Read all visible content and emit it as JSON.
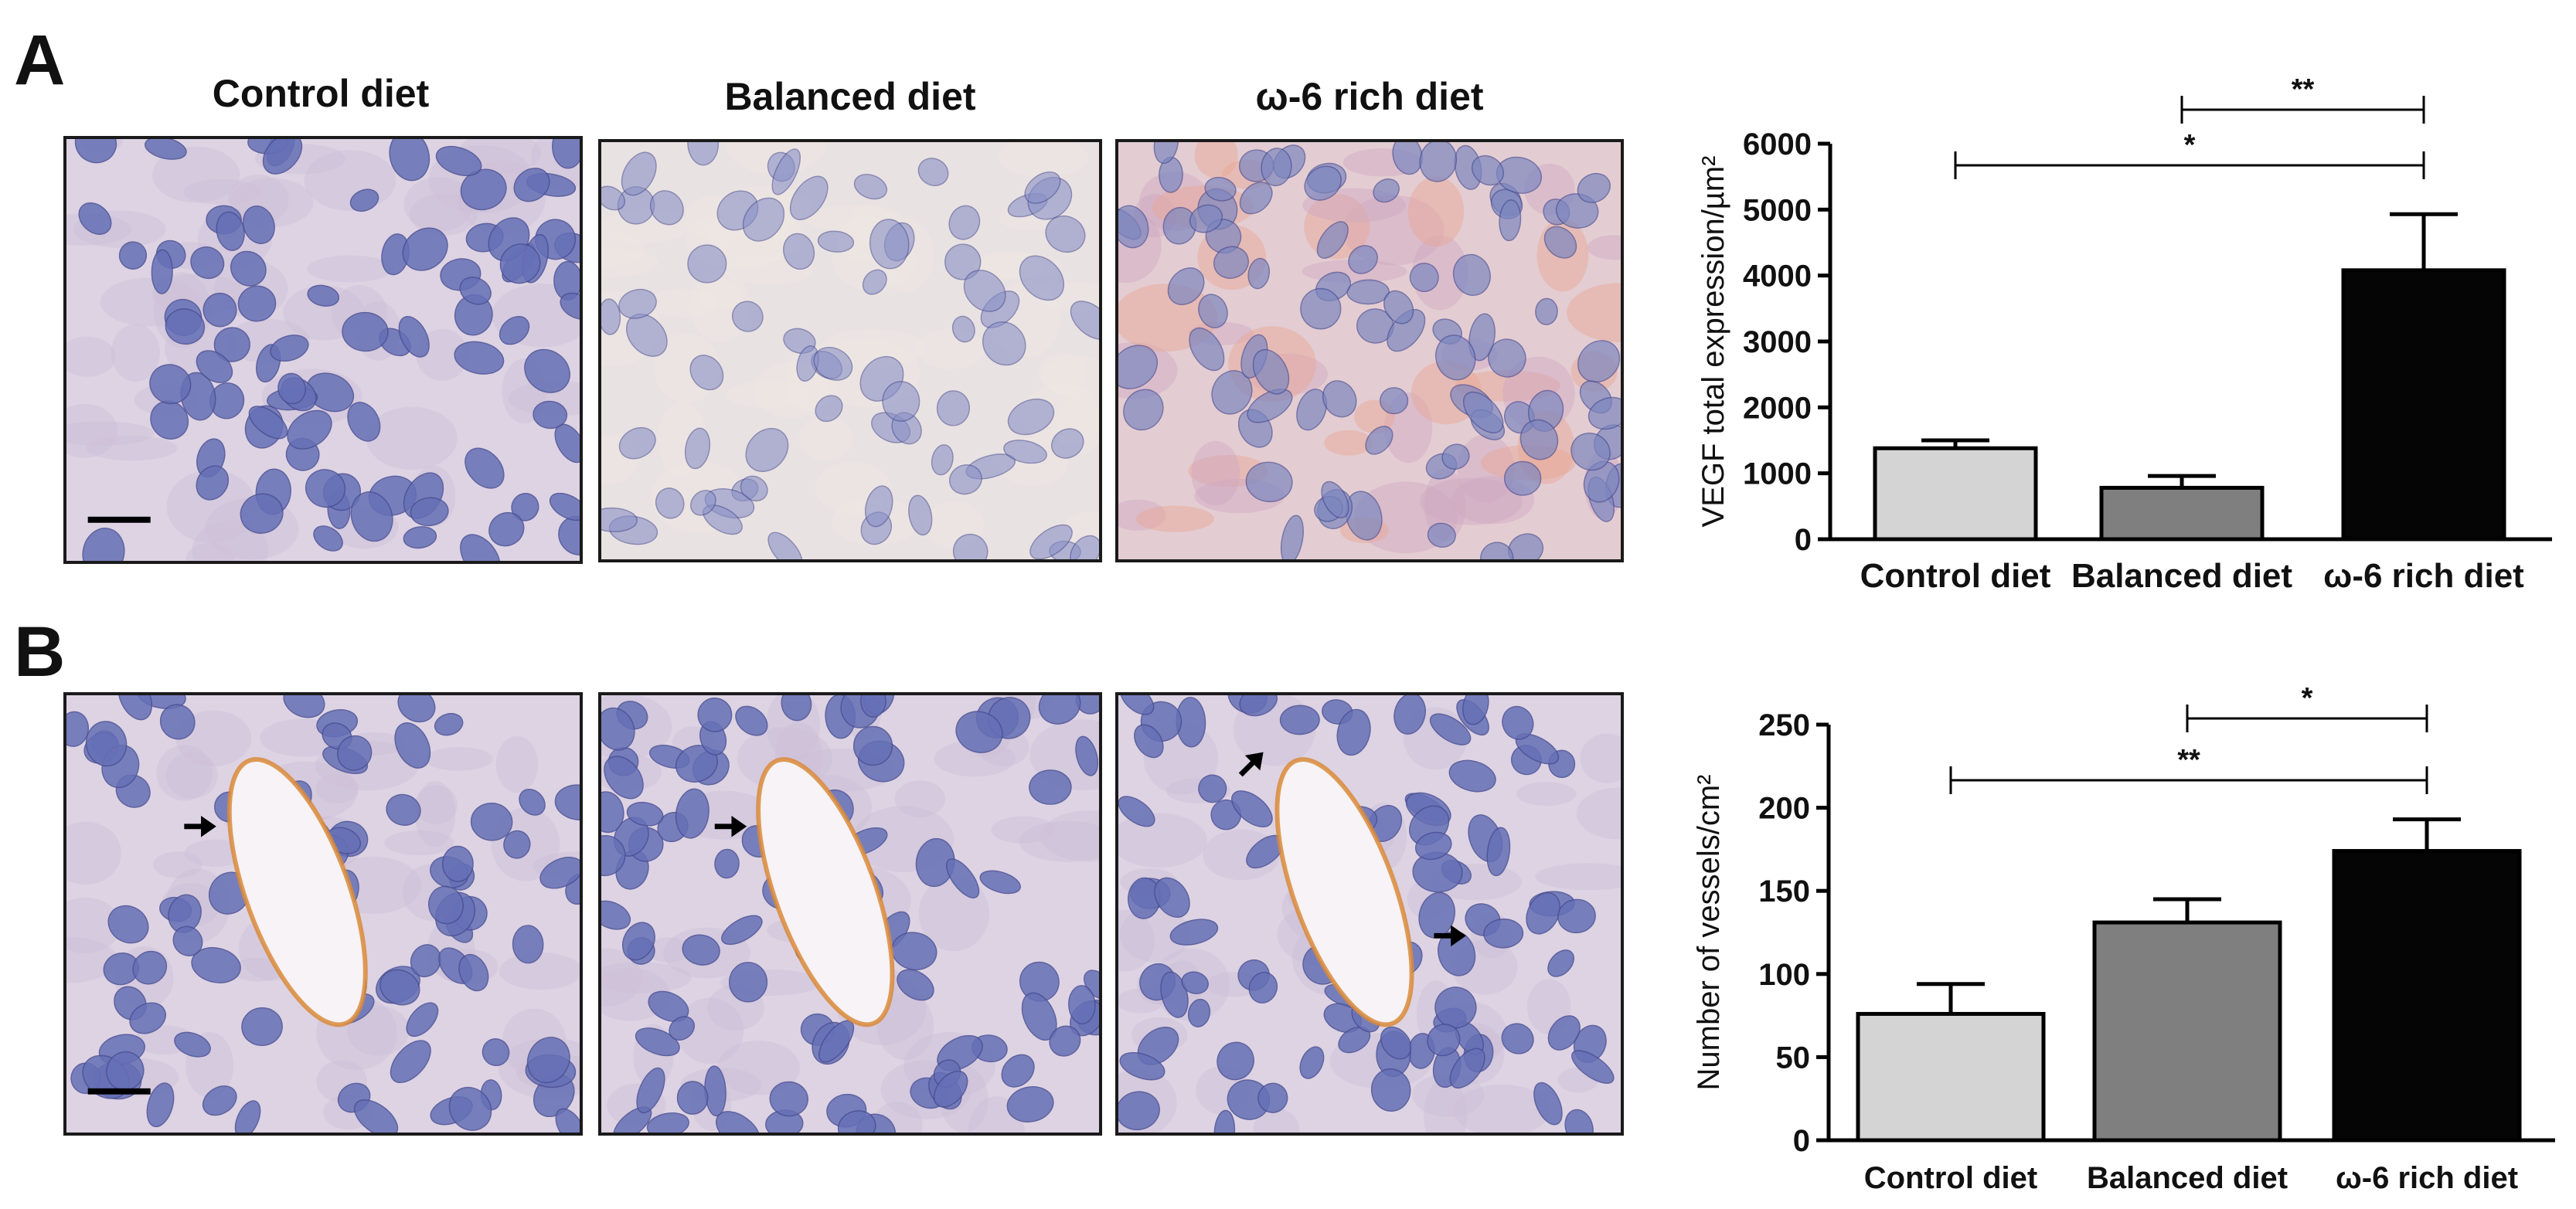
{
  "panels": [
    {
      "letter": "A",
      "column_headers": [
        "Control diet",
        "Balanced diet",
        "ω-6 rich diet"
      ],
      "micrograph_stain": [
        "violet-nuclei",
        "pale-nuclei",
        "orange-cytoplasm"
      ]
    },
    {
      "letter": "B",
      "column_headers": [],
      "micrograph_stain": [
        "vessel-arrow",
        "vessel-arrow",
        "vessel-arrows"
      ]
    }
  ],
  "colors": {
    "bar_control": "#d4d4d4",
    "bar_balanced": "#7f7f7f",
    "bar_omega6": "#050505",
    "tissue_bg": "#ddd3e3",
    "nucleus": "#6670b6",
    "vessel": "#d98a3a"
  },
  "chart_data": [
    {
      "type": "bar",
      "panel": "A",
      "categories": [
        "Control diet",
        "Balanced diet",
        "ω-6 rich diet"
      ],
      "values": [
        1380,
        780,
        4080
      ],
      "errors": [
        120,
        180,
        850
      ],
      "ylabel": "VEGF total expression/µm²",
      "ylim": [
        0,
        6000
      ],
      "yticks": [
        "0",
        "1000",
        "2000",
        "3000",
        "4000",
        "5000",
        "6000"
      ],
      "grid": false,
      "significance": [
        {
          "from": 1,
          "to": 2,
          "label": "**"
        },
        {
          "from": 0,
          "to": 2,
          "label": "*"
        }
      ]
    },
    {
      "type": "bar",
      "panel": "B",
      "categories": [
        "Control  diet",
        "Balanced diet",
        "ω-6 rich diet"
      ],
      "values": [
        76,
        131,
        174
      ],
      "errors": [
        18,
        14,
        19
      ],
      "ylabel": "Number of vessels/cm²",
      "ylim": [
        0,
        250
      ],
      "yticks": [
        "0",
        "50",
        "100",
        "150",
        "200",
        "250"
      ],
      "grid": false,
      "significance": [
        {
          "from": 1,
          "to": 2,
          "label": "*"
        },
        {
          "from": 0,
          "to": 2,
          "label": "**"
        }
      ]
    }
  ]
}
